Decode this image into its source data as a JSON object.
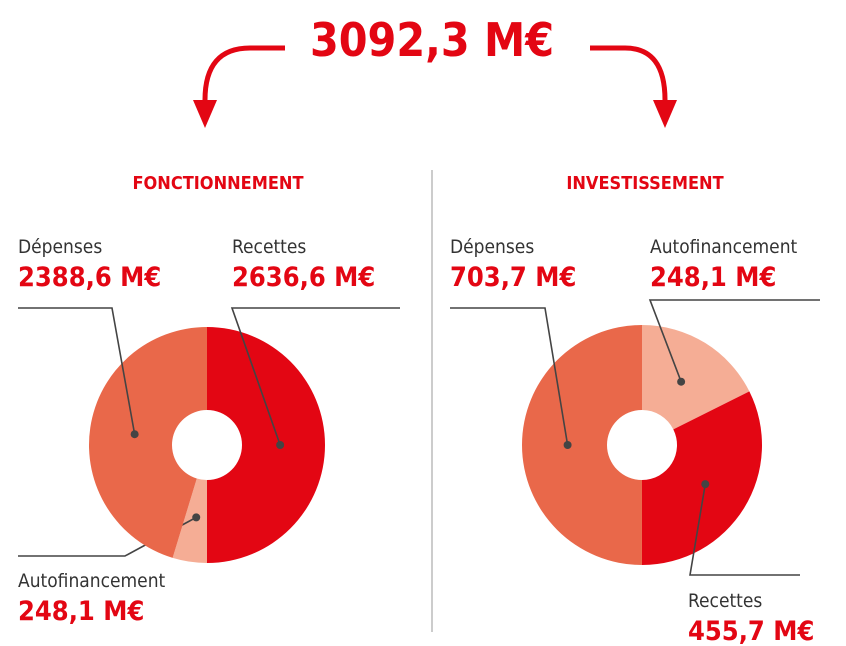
{
  "title": "3092,3 M€",
  "chart_data": [
    {
      "type": "donut",
      "title": "FONCTIONNEMENT",
      "categories": [
        "Recettes",
        "Autofinancement",
        "Dépenses"
      ],
      "values": [
        2636.6,
        248.1,
        2388.6
      ],
      "value_labels": [
        "2636,6 M€",
        "248,1 M€",
        "2388,6 M€"
      ],
      "colors": [
        "#e30613",
        "#f5ad95",
        "#e9684a"
      ]
    },
    {
      "type": "donut",
      "title": "INVESTISSEMENT",
      "categories": [
        "Autofinancement",
        "Recettes",
        "Dépenses"
      ],
      "values": [
        248.1,
        455.7,
        703.7
      ],
      "value_labels": [
        "248,1 M€",
        "455,7 M€",
        "703,7 M€"
      ],
      "colors": [
        "#f5ad95",
        "#e30613",
        "#e9684a"
      ]
    }
  ]
}
